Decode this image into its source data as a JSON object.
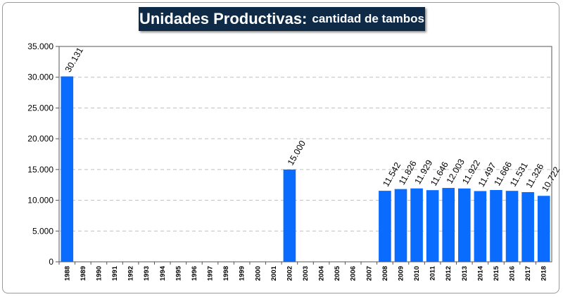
{
  "chart_data": {
    "type": "bar",
    "title": "Unidades Productivas:",
    "subtitle": "cantidad de tambos",
    "categories": [
      "1988",
      "1989",
      "1990",
      "1991",
      "1992",
      "1993",
      "1994",
      "1995",
      "1996",
      "1997",
      "1998",
      "1999",
      "2000",
      "2001",
      "2002",
      "2003",
      "2004",
      "2005",
      "2006",
      "2007",
      "2008",
      "2009",
      "2010",
      "2011",
      "2012",
      "2013",
      "2014",
      "2015",
      "2016",
      "2017",
      "2018"
    ],
    "values": [
      30131,
      null,
      null,
      null,
      null,
      null,
      null,
      null,
      null,
      null,
      null,
      null,
      null,
      null,
      15000,
      null,
      null,
      null,
      null,
      null,
      11542,
      11826,
      11929,
      11646,
      12003,
      11922,
      11497,
      11666,
      11531,
      11326,
      10722
    ],
    "data_labels": [
      "30.131",
      "",
      "",
      "",
      "",
      "",
      "",
      "",
      "",
      "",
      "",
      "",
      "",
      "",
      "15.000",
      "",
      "",
      "",
      "",
      "",
      "11.542",
      "11.826",
      "11.929",
      "11.646",
      "12.003",
      "11.922",
      "11.497",
      "11.666",
      "11.531",
      "11.326",
      "10.722"
    ],
    "ylim": [
      0,
      35000
    ],
    "yticks": [
      0,
      5000,
      10000,
      15000,
      20000,
      25000,
      30000,
      35000
    ],
    "ytick_labels": [
      "0",
      "5.000",
      "10.000",
      "15.000",
      "20.000",
      "25.000",
      "30.000",
      "35.000"
    ],
    "xlabel": "",
    "ylabel": "",
    "grid": true,
    "legend": "none",
    "bar_color": "#0a6cff",
    "title_bg": "#0e2a47"
  }
}
